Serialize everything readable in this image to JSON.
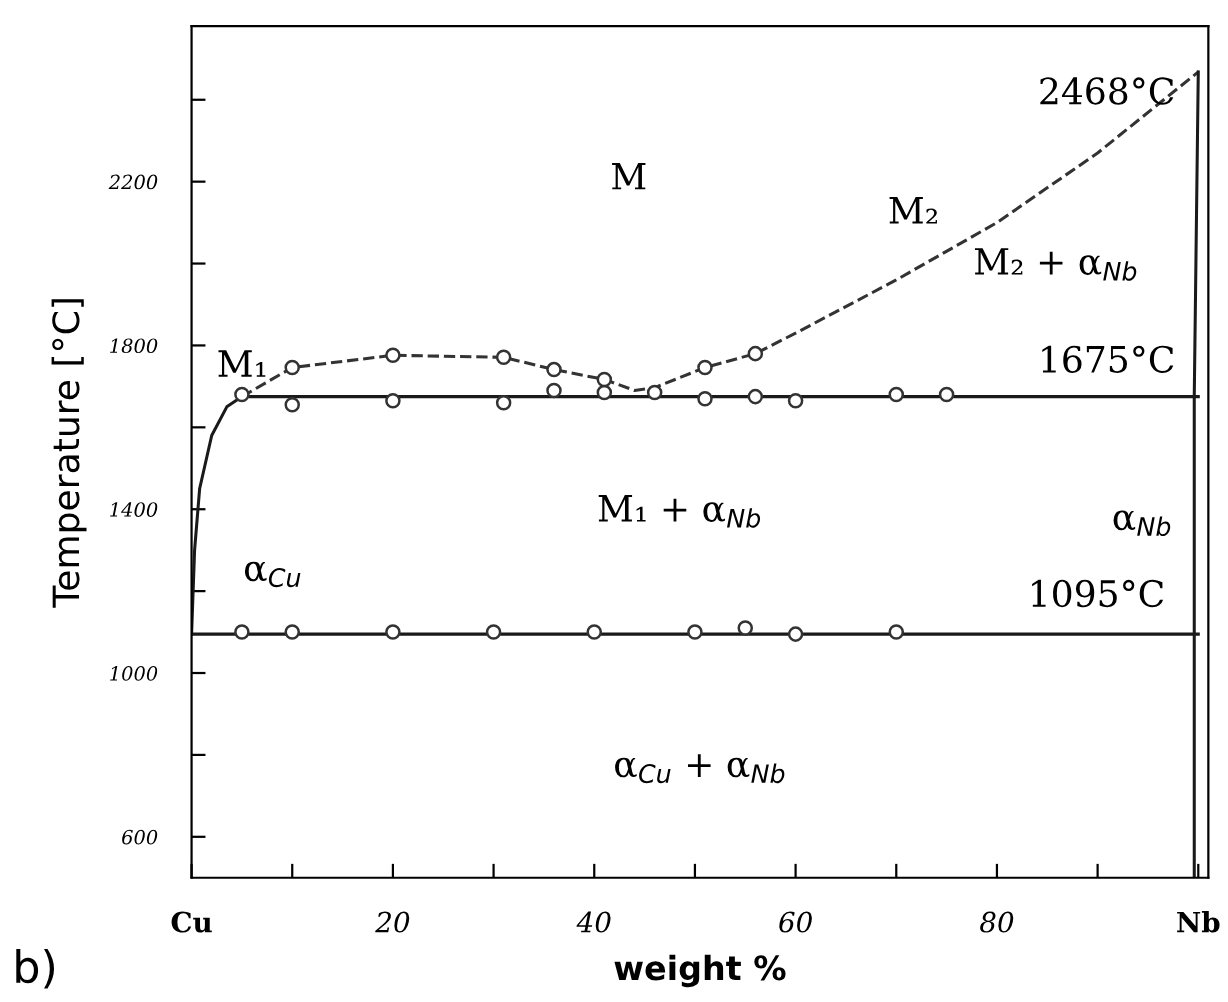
{
  "chart_data": {
    "type": "line",
    "xlabel": "weight %",
    "ylabel": "Temperature [°C]",
    "xlim": [
      0,
      101
    ],
    "ylim": [
      500,
      2580
    ],
    "xticks": [
      {
        "value": 0,
        "label": "Cu"
      },
      {
        "value": 10,
        "label": null
      },
      20,
      {
        "value": 30,
        "label": null
      },
      40,
      {
        "value": 50,
        "label": null
      },
      60,
      {
        "value": 70,
        "label": null
      },
      80,
      {
        "value": 90,
        "label": null
      },
      {
        "value": 100,
        "label": "Nb"
      }
    ],
    "yticks": [
      600,
      {
        "value": 800,
        "label": null
      },
      1000,
      {
        "value": 1200,
        "label": null
      },
      1400,
      {
        "value": 1600,
        "label": null
      },
      1800,
      {
        "value": 2000,
        "label": null
      },
      2200,
      {
        "value": 2400,
        "label": null
      }
    ],
    "grid": false,
    "legend": false,
    "series": [
      {
        "line_style": "solid",
        "marker": "none",
        "color": "#1a1a1a",
        "x": [
          0,
          0.3,
          0.8,
          2,
          3.5,
          5
        ],
        "values": [
          1095,
          1300,
          1450,
          1580,
          1650,
          1675
        ]
      },
      {
        "line_style": "solid",
        "marker": "none",
        "color": "#1a1a1a",
        "x": [
          5,
          100
        ],
        "values": [
          1675,
          1675
        ]
      },
      {
        "line_style": "solid",
        "marker": "none",
        "color": "#1a1a1a",
        "x": [
          0,
          100
        ],
        "values": [
          1095,
          1095
        ]
      },
      {
        "line_style": "dashed",
        "marker": "none",
        "color": "#333333",
        "x": [
          5,
          10,
          20,
          31,
          36,
          41,
          44,
          46,
          51,
          56,
          60,
          70,
          80,
          90,
          100
        ],
        "values": [
          1675,
          1746,
          1776,
          1771,
          1741,
          1717,
          1690,
          1697,
          1746,
          1780,
          1830,
          1960,
          2100,
          2270,
          2468
        ]
      },
      {
        "line_style": "solid",
        "marker": "none",
        "color": "#1a1a1a",
        "x": [
          99.6,
          99.6,
          100
        ],
        "values": [
          500,
          1675,
          2468
        ]
      },
      {
        "type": "scatter",
        "marker": "circle",
        "color": "#333333",
        "x": [
          5,
          10,
          20,
          31,
          36,
          41,
          46,
          51,
          56,
          60,
          70,
          75,
          10,
          20,
          31,
          36,
          41,
          51,
          56,
          5,
          10,
          20,
          30,
          40,
          50,
          55,
          60,
          70
        ],
        "values": [
          1680,
          1655,
          1665,
          1660,
          1690,
          1685,
          1685,
          1670,
          1675,
          1665,
          1680,
          1680,
          1746,
          1776,
          1771,
          1741,
          1717,
          1746,
          1780,
          1100,
          1100,
          1100,
          1100,
          1100,
          1100,
          1110,
          1095,
          1100
        ]
      }
    ],
    "annotations": [
      "M",
      "M₂",
      "M₂ + α$_{Nb}$",
      "2468°C",
      "M₁",
      "1675°C",
      "α$_{Nb}$",
      "α$_{Cu}$",
      "M₁ + α$_{Nb}$",
      "1095°C",
      "α$_{Cu}$ + α$_{Nb}$",
      "b)"
    ]
  }
}
